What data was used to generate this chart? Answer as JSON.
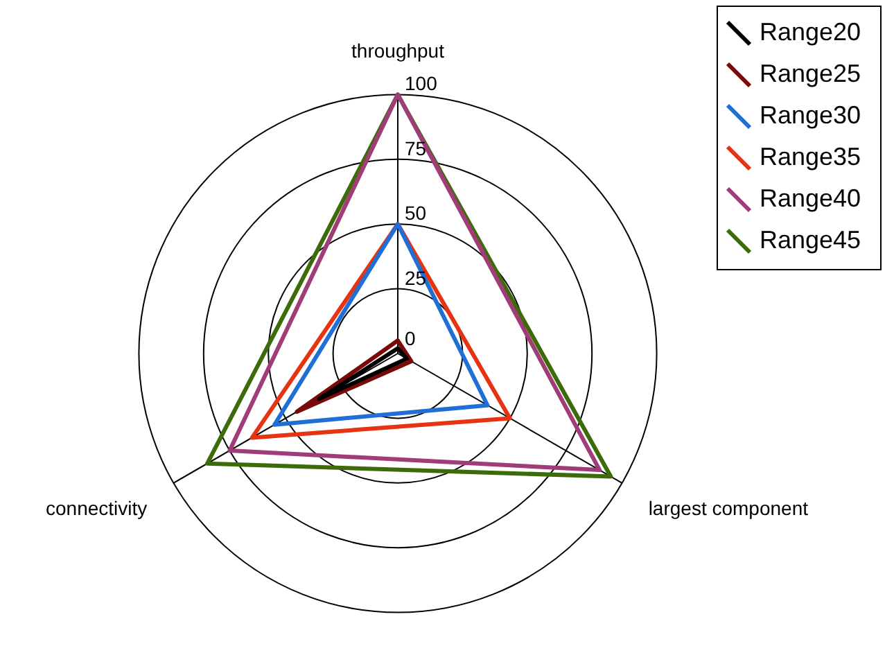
{
  "chart_data": {
    "type": "radar",
    "categories": [
      "throughput",
      "largest component",
      "connectivity"
    ],
    "series": [
      {
        "name": "Range20",
        "color": "#000000",
        "values": [
          2,
          4,
          35
        ]
      },
      {
        "name": "Range25",
        "color": "#7a0a0a",
        "values": [
          5,
          6,
          45
        ]
      },
      {
        "name": "Range30",
        "color": "#1f6fd6",
        "values": [
          50,
          40,
          55
        ]
      },
      {
        "name": "Range35",
        "color": "#e63312",
        "values": [
          50,
          50,
          65
        ]
      },
      {
        "name": "Range40",
        "color": "#a03c78",
        "values": [
          100,
          90,
          75
        ]
      },
      {
        "name": "Range45",
        "color": "#3d6b0a",
        "values": [
          100,
          95,
          85
        ]
      }
    ],
    "ylim": [
      0,
      100
    ],
    "yticks": [
      0,
      25,
      50,
      75,
      100
    ],
    "grid": true,
    "legend": "top right",
    "marker": "none",
    "line_style": "solid"
  }
}
